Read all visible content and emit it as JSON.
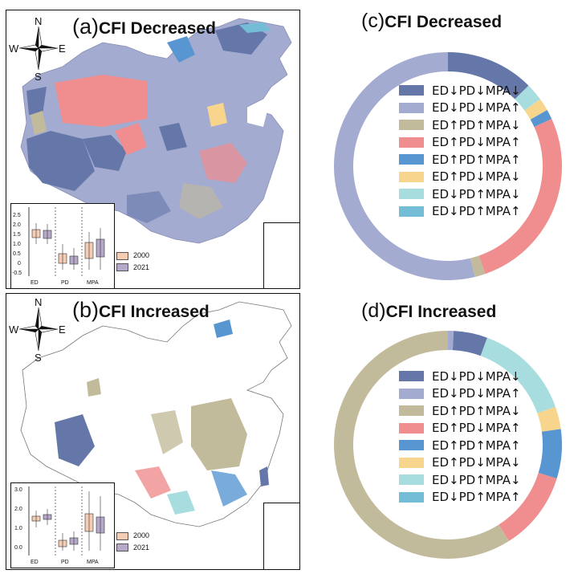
{
  "colors": {
    "dark_blue": "#6477a8",
    "light_purple": "#a4abd0",
    "khaki": "#c2bb9b",
    "pink": "#ef8d8f",
    "blue": "#5896d2",
    "yellow": "#f8d58c",
    "light_cyan": "#a8dde0",
    "cyan": "#73bdd6",
    "box_2000": "#f5cdb4",
    "box_2021": "#b5a8c8"
  },
  "panel_a": {
    "letter": "(a)",
    "title": "CFI Decreased",
    "compass": {
      "n": "N",
      "s": "S",
      "e": "E",
      "w": "W"
    },
    "boxplot": {
      "categories": [
        "ED",
        "PD",
        "MPA"
      ],
      "yticks": [
        "2.5",
        "2.0",
        "1.5",
        "1.0",
        "0.5",
        "0",
        "-0.5"
      ],
      "legend": [
        "2000",
        "2021"
      ]
    }
  },
  "panel_b": {
    "letter": "(b)",
    "title": "CFI Increased",
    "compass": {
      "n": "N",
      "s": "S",
      "e": "E",
      "w": "W"
    },
    "boxplot": {
      "categories": [
        "ED",
        "PD",
        "MPA"
      ],
      "yticks": [
        "3.0",
        "2.0",
        "1.0",
        "0.0"
      ],
      "legend": [
        "2000",
        "2021"
      ]
    }
  },
  "chart_data": [
    {
      "type": "pie",
      "title": "CFI Decreased",
      "letter": "(c)",
      "categories": [
        "ED↓PD↓MPA↓",
        "ED↓PD↓MPA↑",
        "ED↑PD↑MPA↓",
        "ED↑PD↓MPA↑",
        "ED↑PD↑MPA↑",
        "ED↑PD↓MPA↓",
        "ED↓PD↑MPA↓",
        "ED↓PD↑MPA↑"
      ],
      "colors": [
        "#6477a8",
        "#a4abd0",
        "#c2bb9b",
        "#ef8d8f",
        "#5896d2",
        "#f8d58c",
        "#a8dde0",
        "#73bdd6"
      ],
      "slices": [
        {
          "color": "#6477a8",
          "value": 12.5
        },
        {
          "color": "#a8dde0",
          "value": 2.5
        },
        {
          "color": "#f8d58c",
          "value": 1.8
        },
        {
          "color": "#5896d2",
          "value": 1.4
        },
        {
          "color": "#ef8d8f",
          "value": 26.5
        },
        {
          "color": "#c2bb9b",
          "value": 1.5
        },
        {
          "color": "#a4abd0",
          "value": 53.8
        }
      ]
    },
    {
      "type": "pie",
      "title": "CFI Increased",
      "letter": "(d)",
      "categories": [
        "ED↓PD↓MPA↓",
        "ED↓PD↓MPA↑",
        "ED↑PD↑MPA↓",
        "ED↑PD↓MPA↑",
        "ED↑PD↑MPA↑",
        "ED↑PD↓MPA↓",
        "ED↓PD↑MPA↓",
        "ED↓PD↑MPA↑"
      ],
      "colors": [
        "#6477a8",
        "#a4abd0",
        "#c2bb9b",
        "#ef8d8f",
        "#5896d2",
        "#f8d58c",
        "#a8dde0",
        "#73bdd6"
      ],
      "slices": [
        {
          "color": "#a4abd0",
          "value": 0.8
        },
        {
          "color": "#6477a8",
          "value": 4.8
        },
        {
          "color": "#a8dde0",
          "value": 14.0
        },
        {
          "color": "#f8d58c",
          "value": 3.2
        },
        {
          "color": "#5896d2",
          "value": 7.0
        },
        {
          "color": "#ef8d8f",
          "value": 11.2
        },
        {
          "color": "#c2bb9b",
          "value": 59.0
        }
      ]
    }
  ]
}
